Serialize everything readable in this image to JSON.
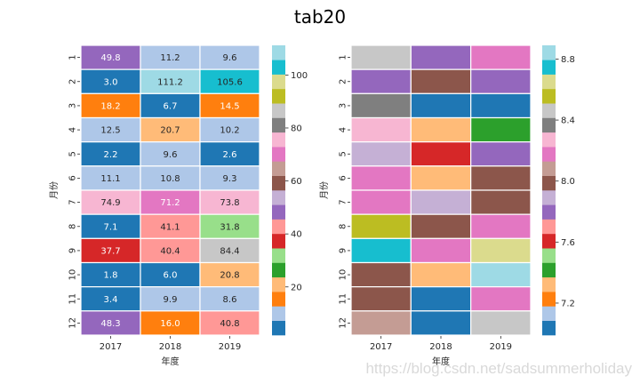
{
  "title": "tab20",
  "watermark": "https://blog.csdn.net/sadsummerholiday",
  "colormap": [
    "#1f77b4",
    "#aec7e8",
    "#ff7f0e",
    "#ffbb78",
    "#2ca02c",
    "#98df8a",
    "#d62728",
    "#ff9896",
    "#9467bd",
    "#c5b0d5",
    "#8c564b",
    "#c49c94",
    "#e377c2",
    "#f7b6d2",
    "#7f7f7f",
    "#c7c7c7",
    "#bcbd22",
    "#dbdb8d",
    "#17becf",
    "#9edae5"
  ],
  "chart_data": [
    {
      "type": "heatmap",
      "title": "",
      "xlabel": "年度",
      "ylabel": "月份",
      "x": [
        "2017",
        "2018",
        "2019"
      ],
      "y": [
        "1",
        "2",
        "3",
        "4",
        "5",
        "6",
        "7",
        "8",
        "9",
        "10",
        "11",
        "12"
      ],
      "annotate": true,
      "values": [
        [
          49.8,
          11.2,
          9.6
        ],
        [
          3.0,
          111.2,
          105.6
        ],
        [
          18.2,
          6.7,
          14.5
        ],
        [
          12.5,
          20.7,
          10.2
        ],
        [
          2.2,
          9.6,
          2.6
        ],
        [
          11.1,
          10.8,
          9.3
        ],
        [
          74.9,
          71.2,
          73.8
        ],
        [
          7.1,
          41.1,
          31.8
        ],
        [
          37.7,
          40.4,
          84.4
        ],
        [
          1.8,
          6.0,
          20.8
        ],
        [
          3.4,
          9.9,
          8.6
        ],
        [
          48.3,
          16.0,
          40.8
        ]
      ],
      "vmin": 1.8,
      "vmax": 111.2,
      "colorbar": {
        "ticks": [
          20,
          40,
          60,
          80,
          100
        ],
        "tick_labels": [
          "20",
          "40",
          "60",
          "80",
          "100"
        ]
      }
    },
    {
      "type": "heatmap",
      "title": "",
      "xlabel": "年度",
      "ylabel": "月份",
      "x": [
        "2017",
        "2018",
        "2019"
      ],
      "y": [
        "1",
        "2",
        "3",
        "4",
        "5",
        "6",
        "7",
        "8",
        "9",
        "10",
        "11",
        "12"
      ],
      "annotate": false,
      "values": [
        [
          8.46,
          7.8,
          8.18
        ],
        [
          7.8,
          7.99,
          7.8
        ],
        [
          8.37,
          7.04,
          7.04
        ],
        [
          8.27,
          7.32,
          7.42
        ],
        [
          7.89,
          7.61,
          7.8
        ],
        [
          8.18,
          7.32,
          7.99
        ],
        [
          8.18,
          7.89,
          7.99
        ],
        [
          8.56,
          7.99,
          8.18
        ],
        [
          8.75,
          8.18,
          8.65
        ],
        [
          7.99,
          7.32,
          8.84
        ],
        [
          7.99,
          7.04,
          8.18
        ],
        [
          8.08,
          7.04,
          8.46
        ]
      ],
      "vmin": 6.99,
      "vmax": 8.89,
      "colorbar": {
        "ticks": [
          7.2,
          7.6,
          8.0,
          8.4,
          8.8
        ],
        "tick_labels": [
          "7.2",
          "7.6",
          "8.0",
          "8.4",
          "8.8"
        ]
      }
    }
  ]
}
